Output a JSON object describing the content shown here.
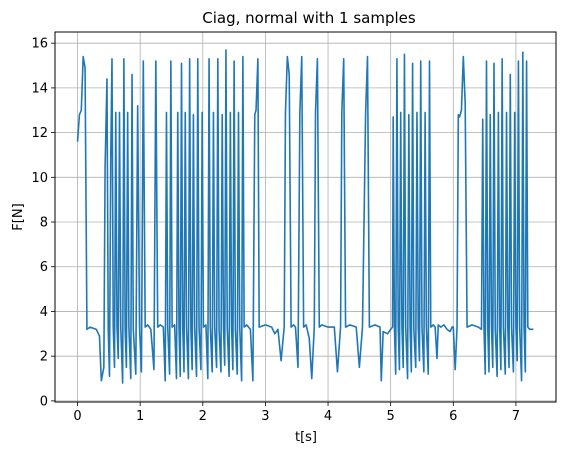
{
  "chart_data": {
    "type": "line",
    "title": "Ciag, normal with 1 samples",
    "xlabel": "t[s]",
    "ylabel": "F[N]",
    "xlim": [
      -0.36,
      7.64
    ],
    "ylim": [
      -0.05,
      16.5
    ],
    "grid": true,
    "xticks": [
      0,
      1,
      2,
      3,
      4,
      5,
      6,
      7
    ],
    "yticks": [
      0,
      2,
      4,
      6,
      8,
      10,
      12,
      14,
      16
    ],
    "series": [
      {
        "color": "#1f77b4",
        "points": [
          [
            0.0,
            11.6
          ],
          [
            0.03,
            12.8
          ],
          [
            0.06,
            13.0
          ],
          [
            0.09,
            15.4
          ],
          [
            0.12,
            14.9
          ],
          [
            0.15,
            3.2
          ],
          [
            0.2,
            3.3
          ],
          [
            0.3,
            3.2
          ],
          [
            0.35,
            2.9
          ],
          [
            0.38,
            0.9
          ],
          [
            0.42,
            1.5
          ],
          [
            0.44,
            10.5
          ],
          [
            0.47,
            14.4
          ],
          [
            0.49,
            3.2
          ],
          [
            0.51,
            1.1
          ],
          [
            0.53,
            10.8
          ],
          [
            0.55,
            15.3
          ],
          [
            0.57,
            3.3
          ],
          [
            0.59,
            1.5
          ],
          [
            0.61,
            12.9
          ],
          [
            0.63,
            3.3
          ],
          [
            0.65,
            1.9
          ],
          [
            0.67,
            12.9
          ],
          [
            0.69,
            3.3
          ],
          [
            0.72,
            0.8
          ],
          [
            0.74,
            15.3
          ],
          [
            0.76,
            3.2
          ],
          [
            0.78,
            1.5
          ],
          [
            0.8,
            12.9
          ],
          [
            0.82,
            3.3
          ],
          [
            0.85,
            1.0
          ],
          [
            0.87,
            14.6
          ],
          [
            0.89,
            3.2
          ],
          [
            0.93,
            1.2
          ],
          [
            0.96,
            13.2
          ],
          [
            0.99,
            3.3
          ],
          [
            1.02,
            1.3
          ],
          [
            1.05,
            15.2
          ],
          [
            1.08,
            3.3
          ],
          [
            1.12,
            3.4
          ],
          [
            1.17,
            3.2
          ],
          [
            1.22,
            1.4
          ],
          [
            1.25,
            15.2
          ],
          [
            1.28,
            3.3
          ],
          [
            1.32,
            3.4
          ],
          [
            1.37,
            3.3
          ],
          [
            1.4,
            0.9
          ],
          [
            1.42,
            12.9
          ],
          [
            1.44,
            3.3
          ],
          [
            1.47,
            1.2
          ],
          [
            1.49,
            15.2
          ],
          [
            1.51,
            3.3
          ],
          [
            1.55,
            3.4
          ],
          [
            1.58,
            1.0
          ],
          [
            1.6,
            12.9
          ],
          [
            1.62,
            3.3
          ],
          [
            1.64,
            1.1
          ],
          [
            1.66,
            15.1
          ],
          [
            1.68,
            3.3
          ],
          [
            1.7,
            1.3
          ],
          [
            1.72,
            12.9
          ],
          [
            1.74,
            3.3
          ],
          [
            1.77,
            1.0
          ],
          [
            1.79,
            15.3
          ],
          [
            1.81,
            3.2
          ],
          [
            1.83,
            1.4
          ],
          [
            1.85,
            12.8
          ],
          [
            1.87,
            3.3
          ],
          [
            1.9,
            1.1
          ],
          [
            1.92,
            15.3
          ],
          [
            1.94,
            3.3
          ],
          [
            1.97,
            1.4
          ],
          [
            1.99,
            12.9
          ],
          [
            2.01,
            3.3
          ],
          [
            2.05,
            3.4
          ],
          [
            2.08,
            1.0
          ],
          [
            2.1,
            15.3
          ],
          [
            2.12,
            3.3
          ],
          [
            2.15,
            1.3
          ],
          [
            2.17,
            12.9
          ],
          [
            2.19,
            3.3
          ],
          [
            2.22,
            1.5
          ],
          [
            2.24,
            15.3
          ],
          [
            2.26,
            3.2
          ],
          [
            2.29,
            1.3
          ],
          [
            2.31,
            12.8
          ],
          [
            2.33,
            3.3
          ],
          [
            2.35,
            1.6
          ],
          [
            2.37,
            15.7
          ],
          [
            2.39,
            3.3
          ],
          [
            2.42,
            1.1
          ],
          [
            2.44,
            12.9
          ],
          [
            2.46,
            3.3
          ],
          [
            2.48,
            1.4
          ],
          [
            2.5,
            15.2
          ],
          [
            2.52,
            3.2
          ],
          [
            2.55,
            1.2
          ],
          [
            2.57,
            12.9
          ],
          [
            2.59,
            3.3
          ],
          [
            2.62,
            0.9
          ],
          [
            2.64,
            15.4
          ],
          [
            2.66,
            3.3
          ],
          [
            2.7,
            3.4
          ],
          [
            2.76,
            3.2
          ],
          [
            2.8,
            0.9
          ],
          [
            2.83,
            12.8
          ],
          [
            2.85,
            13.0
          ],
          [
            2.88,
            15.3
          ],
          [
            2.9,
            3.3
          ],
          [
            3.0,
            3.4
          ],
          [
            3.1,
            3.3
          ],
          [
            3.15,
            3.0
          ],
          [
            3.2,
            3.2
          ],
          [
            3.25,
            1.8
          ],
          [
            3.3,
            3.3
          ],
          [
            3.32,
            12.9
          ],
          [
            3.35,
            15.4
          ],
          [
            3.38,
            14.6
          ],
          [
            3.41,
            3.3
          ],
          [
            3.45,
            3.4
          ],
          [
            3.48,
            3.3
          ],
          [
            3.52,
            1.5
          ],
          [
            3.55,
            12.9
          ],
          [
            3.58,
            15.4
          ],
          [
            3.61,
            3.3
          ],
          [
            3.65,
            3.4
          ],
          [
            3.7,
            2.8
          ],
          [
            3.74,
            1.0
          ],
          [
            3.78,
            3.3
          ],
          [
            3.8,
            12.9
          ],
          [
            3.83,
            15.3
          ],
          [
            3.86,
            3.3
          ],
          [
            3.9,
            3.4
          ],
          [
            4.0,
            3.3
          ],
          [
            4.1,
            3.3
          ],
          [
            4.15,
            1.3
          ],
          [
            4.2,
            3.3
          ],
          [
            4.22,
            12.9
          ],
          [
            4.25,
            15.3
          ],
          [
            4.28,
            3.3
          ],
          [
            4.35,
            3.4
          ],
          [
            4.45,
            3.3
          ],
          [
            4.5,
            1.5
          ],
          [
            4.55,
            3.3
          ],
          [
            4.6,
            12.9
          ],
          [
            4.63,
            15.4
          ],
          [
            4.66,
            3.3
          ],
          [
            4.75,
            3.4
          ],
          [
            4.83,
            3.3
          ],
          [
            4.85,
            0.9
          ],
          [
            4.88,
            3.1
          ],
          [
            4.95,
            3.0
          ],
          [
            5.0,
            3.2
          ],
          [
            5.03,
            3.3
          ],
          [
            5.04,
            12.7
          ],
          [
            5.06,
            3.3
          ],
          [
            5.08,
            1.2
          ],
          [
            5.1,
            15.3
          ],
          [
            5.12,
            3.3
          ],
          [
            5.14,
            1.4
          ],
          [
            5.16,
            12.9
          ],
          [
            5.18,
            3.3
          ],
          [
            5.2,
            1.5
          ],
          [
            5.22,
            15.5
          ],
          [
            5.24,
            3.3
          ],
          [
            5.27,
            1.0
          ],
          [
            5.29,
            12.8
          ],
          [
            5.31,
            3.3
          ],
          [
            5.33,
            1.3
          ],
          [
            5.35,
            15.1
          ],
          [
            5.37,
            3.2
          ],
          [
            5.4,
            1.5
          ],
          [
            5.42,
            12.9
          ],
          [
            5.44,
            3.3
          ],
          [
            5.46,
            1.8
          ],
          [
            5.48,
            15.2
          ],
          [
            5.5,
            3.3
          ],
          [
            5.53,
            1.3
          ],
          [
            5.55,
            12.9
          ],
          [
            5.57,
            3.3
          ],
          [
            5.6,
            1.2
          ],
          [
            5.62,
            15.2
          ],
          [
            5.64,
            3.3
          ],
          [
            5.68,
            3.4
          ],
          [
            5.71,
            3.3
          ],
          [
            5.74,
            1.9
          ],
          [
            5.76,
            3.4
          ],
          [
            5.8,
            3.3
          ],
          [
            5.85,
            3.4
          ],
          [
            5.9,
            3.2
          ],
          [
            5.95,
            3.1
          ],
          [
            5.98,
            3.3
          ],
          [
            6.0,
            3.3
          ],
          [
            6.03,
            1.4
          ],
          [
            6.06,
            3.3
          ],
          [
            6.08,
            12.8
          ],
          [
            6.1,
            12.7
          ],
          [
            6.13,
            13.0
          ],
          [
            6.16,
            15.4
          ],
          [
            6.19,
            13.3
          ],
          [
            6.22,
            3.3
          ],
          [
            6.3,
            3.4
          ],
          [
            6.4,
            3.3
          ],
          [
            6.45,
            3.2
          ],
          [
            6.47,
            12.6
          ],
          [
            6.49,
            3.3
          ],
          [
            6.51,
            1.2
          ],
          [
            6.53,
            15.2
          ],
          [
            6.55,
            3.3
          ],
          [
            6.57,
            1.3
          ],
          [
            6.59,
            12.8
          ],
          [
            6.61,
            3.3
          ],
          [
            6.63,
            1.5
          ],
          [
            6.65,
            15.1
          ],
          [
            6.67,
            3.2
          ],
          [
            6.7,
            1.1
          ],
          [
            6.72,
            12.9
          ],
          [
            6.74,
            3.3
          ],
          [
            6.76,
            1.4
          ],
          [
            6.78,
            15.3
          ],
          [
            6.8,
            3.3
          ],
          [
            6.83,
            1.2
          ],
          [
            6.85,
            12.9
          ],
          [
            6.87,
            3.3
          ],
          [
            6.89,
            1.5
          ],
          [
            6.91,
            14.6
          ],
          [
            6.93,
            3.3
          ],
          [
            6.96,
            1.3
          ],
          [
            6.98,
            12.9
          ],
          [
            7.0,
            3.3
          ],
          [
            7.02,
            1.8
          ],
          [
            7.04,
            15.2
          ],
          [
            7.06,
            3.3
          ],
          [
            7.09,
            0.9
          ],
          [
            7.11,
            15.6
          ],
          [
            7.13,
            3.3
          ],
          [
            7.15,
            1.3
          ],
          [
            7.17,
            15.2
          ],
          [
            7.19,
            3.3
          ],
          [
            7.22,
            3.2
          ],
          [
            7.28,
            3.2
          ]
        ]
      }
    ]
  }
}
